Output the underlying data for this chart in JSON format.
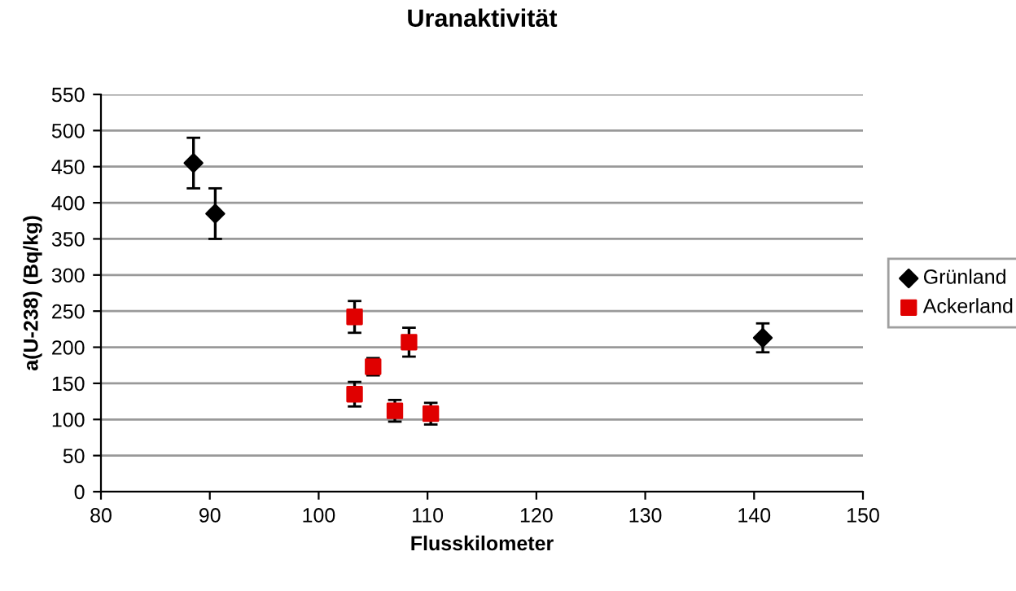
{
  "chart_data": {
    "type": "scatter",
    "title": "Uranaktivität",
    "xlabel": "Flusskilometer",
    "ylabel": "a(U-238) (Bq/kg)",
    "xlim": [
      80,
      150
    ],
    "xticks": [
      80,
      90,
      100,
      110,
      120,
      130,
      140,
      150
    ],
    "ylim": [
      0,
      550
    ],
    "yticks": [
      0,
      50,
      100,
      150,
      200,
      250,
      300,
      350,
      400,
      450,
      500,
      550
    ],
    "grid": "y",
    "legend": "right",
    "series": [
      {
        "name": "Grünland",
        "color": "#000000",
        "marker": "diamond",
        "x": [
          88.5,
          90.5,
          140.8
        ],
        "values": [
          455,
          385,
          213
        ],
        "errors": [
          35,
          35,
          20
        ]
      },
      {
        "name": "Ackerland",
        "color": "#e00000",
        "marker": "square",
        "x": [
          103.3,
          103.3,
          105,
          107,
          108.3,
          110.3
        ],
        "values": [
          242,
          135,
          173,
          112,
          207,
          108
        ],
        "errors": [
          22,
          17,
          12,
          15,
          20,
          15
        ]
      }
    ]
  }
}
